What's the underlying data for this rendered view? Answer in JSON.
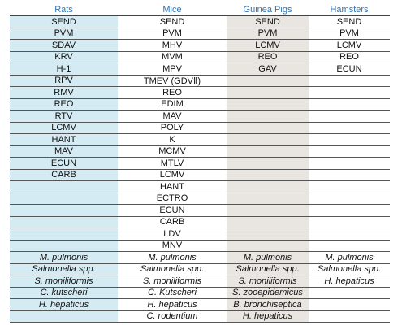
{
  "table": {
    "columns": [
      {
        "header": "Rats",
        "agents": [
          "SEND",
          "PVM",
          "SDAV",
          "KRV",
          "H-1",
          "RPV",
          "RMV",
          "REO",
          "RTV",
          "LCMV",
          "HANT",
          "MAV",
          "ECUN",
          "CARB"
        ],
        "bacteria": [
          "M. pulmonis",
          "Salmonella spp.",
          "S. moniliformis",
          "C. kutscheri",
          "H. hepaticus"
        ]
      },
      {
        "header": "Mice",
        "agents": [
          "SEND",
          "PVM",
          "MHV",
          "MVM",
          "MPV",
          "TMEV (GDVⅡ)",
          "REO",
          "EDIM",
          "MAV",
          "POLY",
          "K",
          "MCMV",
          "MTLV",
          "LCMV",
          "HANT",
          "ECTRO",
          "ECUN",
          "CARB",
          "LDV",
          "MNV"
        ],
        "bacteria": [
          "M. pulmonis",
          "Salmonella spp.",
          "S. moniliformis",
          "C. Kutscheri",
          "H. hepaticus",
          "C. rodentium"
        ]
      },
      {
        "header": "Guinea Pigs",
        "agents": [
          "SEND",
          "PVM",
          "LCMV",
          "REO",
          "GAV"
        ],
        "bacteria": [
          "M. pulmonis",
          "Salmonella spp.",
          "S. moniliformis",
          "S. zooepidemicus",
          "B. bronchiseptica",
          "H. hepaticus"
        ]
      },
      {
        "header": "Hamsters",
        "agents": [
          "SEND",
          "PVM",
          "LCMV",
          "REO",
          "ECUN"
        ],
        "bacteria": [
          "M. pulmonis",
          "Salmonella spp.",
          "H. hepaticus"
        ]
      }
    ]
  }
}
